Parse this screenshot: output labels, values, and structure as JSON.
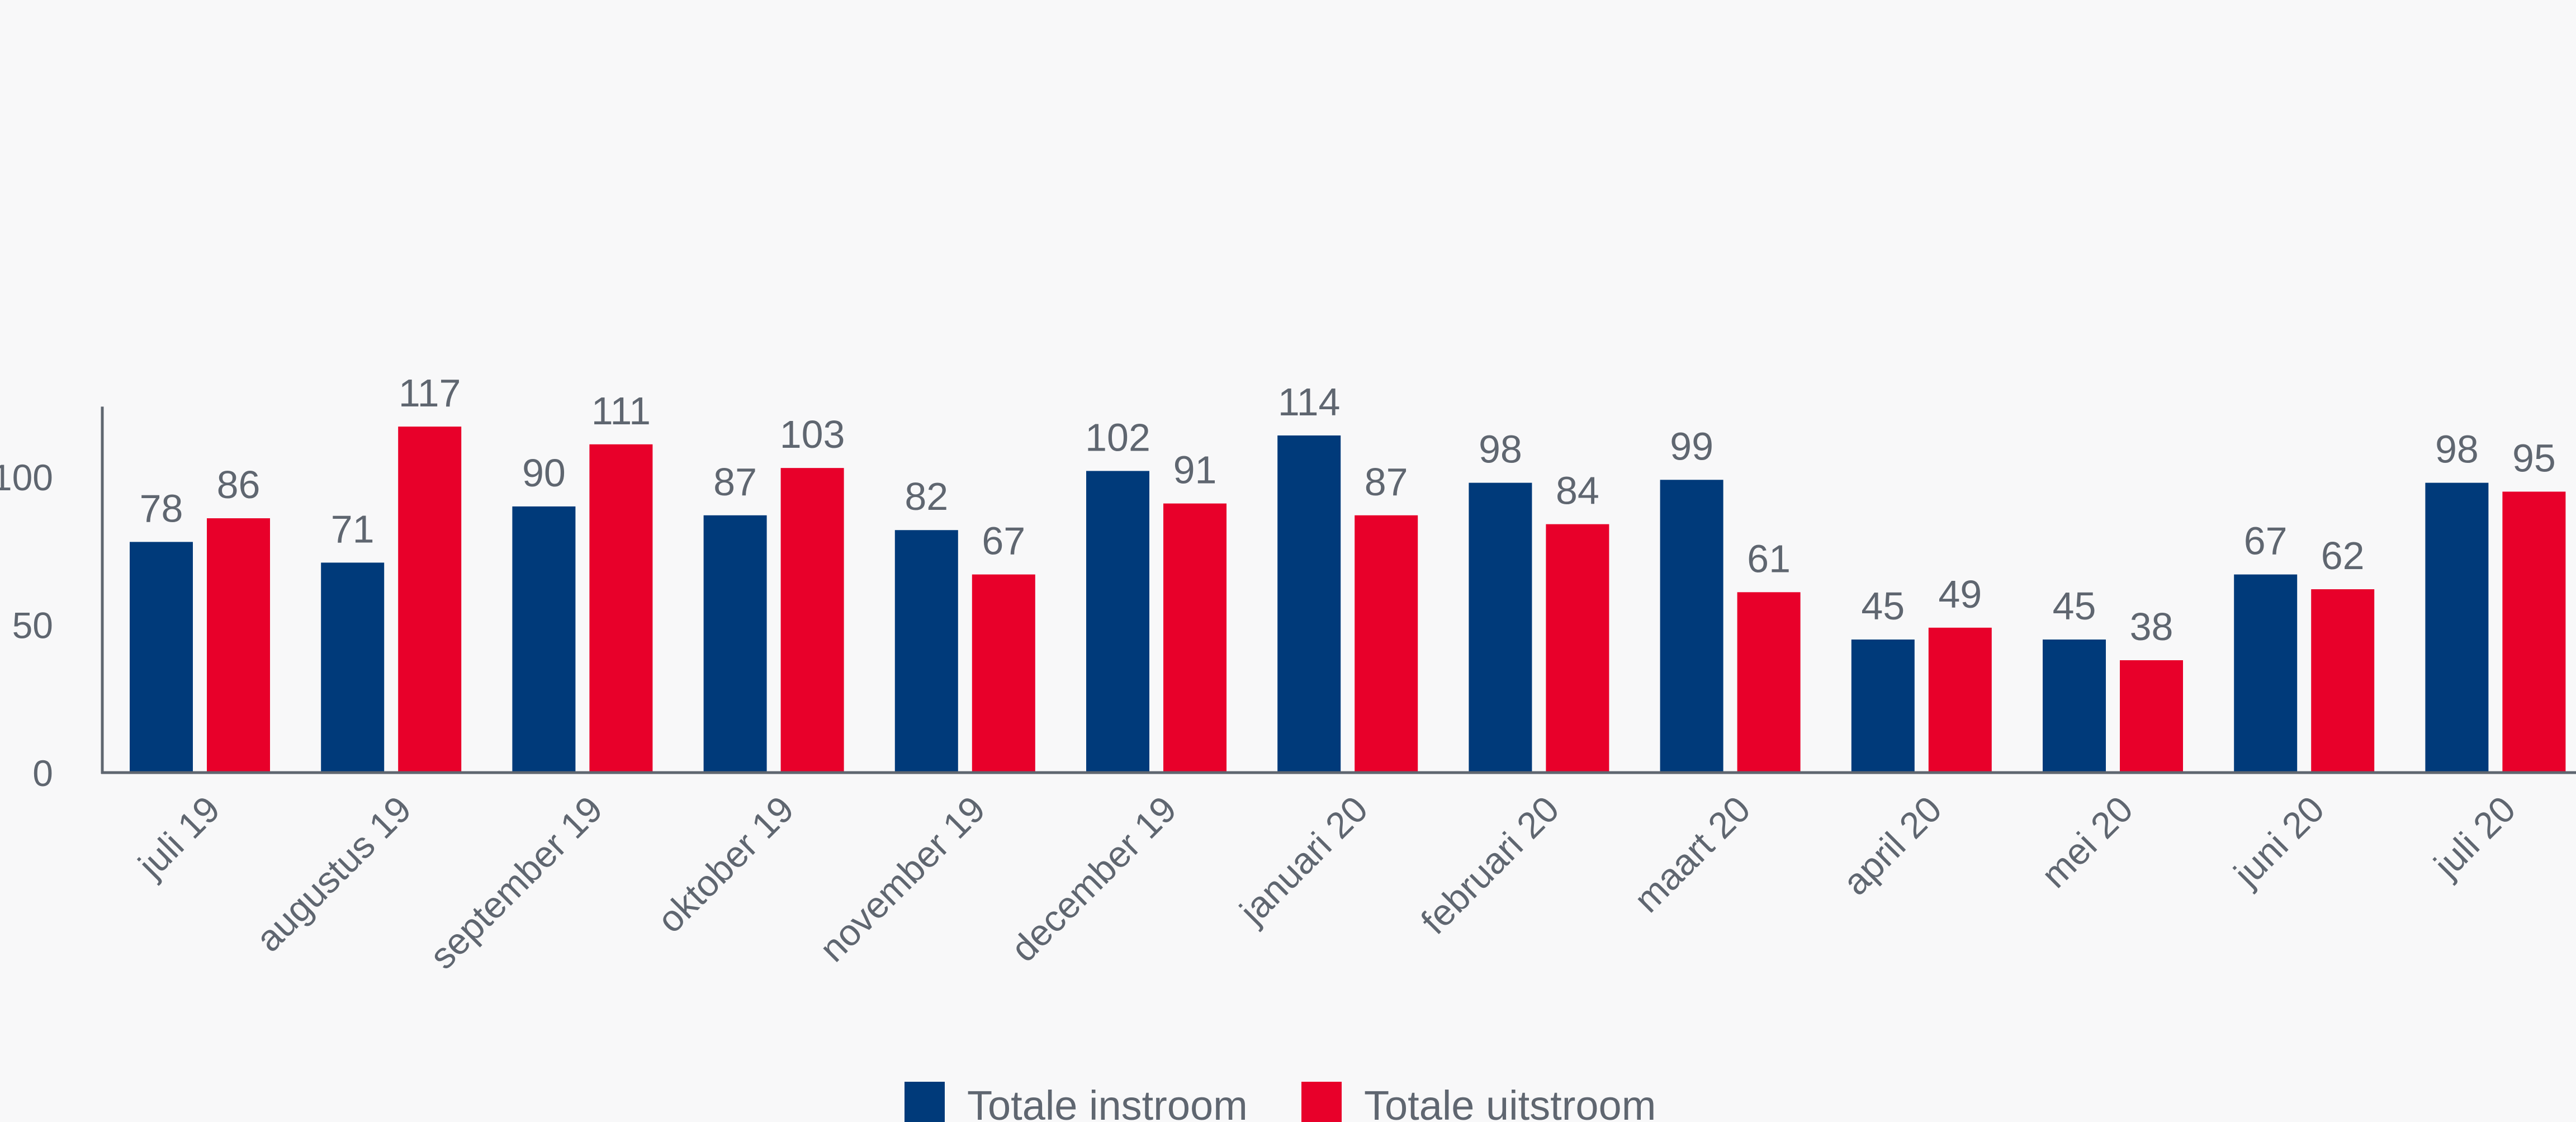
{
  "chart_data": {
    "type": "bar",
    "categories": [
      "juli 19",
      "augustus 19",
      "september 19",
      "oktober 19",
      "november 19",
      "december 19",
      "januari 20",
      "februari 20",
      "maart 20",
      "april 20",
      "mei 20",
      "juni 20",
      "juli 20"
    ],
    "series": [
      {
        "name": "Totale instroom",
        "color": "#003a7a",
        "values": [
          78,
          71,
          90,
          87,
          82,
          102,
          114,
          98,
          99,
          45,
          45,
          67,
          98
        ]
      },
      {
        "name": "Totale uitstroom",
        "color": "#e8002a",
        "values": [
          86,
          117,
          111,
          103,
          67,
          91,
          87,
          84,
          61,
          49,
          38,
          62,
          95
        ]
      }
    ],
    "y_ticks": [
      "0",
      "50",
      "100"
    ],
    "y_tick_values": [
      0,
      50,
      100
    ],
    "ylim": [
      0,
      123
    ],
    "grid": false,
    "legend_position": "bottom-center",
    "axis_color": "#5f6670"
  }
}
